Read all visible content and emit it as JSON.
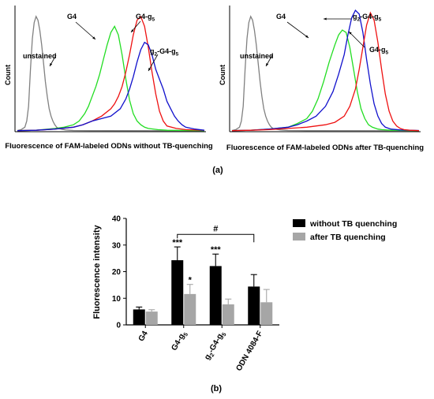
{
  "chart_data": [
    {
      "type": "line",
      "panel": "a-left",
      "ylabel": "Count",
      "xlabel": "Fluorescence of FAM-labeled ODNs without TB-quenching",
      "x_range": [
        0,
        100
      ],
      "series": [
        {
          "name": "unstained",
          "color": "#808080",
          "x": [
            0,
            2,
            4,
            5,
            6,
            7,
            8,
            9,
            10,
            11,
            12,
            13,
            14,
            15,
            16,
            17,
            18,
            19,
            20,
            21,
            22,
            24,
            26,
            28,
            30,
            40,
            100
          ],
          "y": [
            0.3,
            1,
            3,
            8,
            20,
            50,
            75,
            88,
            93,
            90,
            82,
            70,
            55,
            40,
            28,
            18,
            12,
            8,
            5,
            3,
            2,
            1.2,
            0.8,
            0.5,
            0.3,
            0.2,
            0.1
          ]
        },
        {
          "name": "G4",
          "color": "#22dd22",
          "x": [
            0,
            10,
            20,
            25,
            30,
            33,
            36,
            38,
            40,
            42,
            44,
            46,
            48,
            50,
            52,
            54,
            56,
            58,
            60,
            62,
            64,
            66,
            68,
            70,
            75,
            80,
            100
          ],
          "y": [
            0.2,
            0.5,
            2,
            3,
            5,
            8,
            14,
            20,
            28,
            36,
            46,
            58,
            70,
            80,
            85,
            78,
            62,
            42,
            25,
            14,
            8,
            5,
            3,
            2,
            1,
            0.5,
            0.2
          ]
        },
        {
          "name": "G4-g5",
          "color": "#ee1111",
          "x": [
            0,
            10,
            20,
            30,
            35,
            40,
            45,
            50,
            52,
            54,
            56,
            58,
            60,
            62,
            64,
            66,
            68,
            70,
            72,
            74,
            76,
            78,
            80,
            85,
            90,
            100
          ],
          "y": [
            0.2,
            0.5,
            1.5,
            3,
            5,
            8,
            12,
            18,
            22,
            28,
            36,
            48,
            62,
            78,
            90,
            93,
            85,
            68,
            48,
            30,
            16,
            8,
            4,
            2,
            1,
            0.5
          ]
        },
        {
          "name": "g2-G4-g5",
          "color": "#1111cc",
          "x": [
            0,
            10,
            20,
            30,
            35,
            40,
            45,
            50,
            55,
            58,
            60,
            62,
            64,
            66,
            68,
            70,
            72,
            74,
            76,
            78,
            80,
            82,
            84,
            86,
            88,
            90,
            95,
            100
          ],
          "y": [
            0.2,
            0.5,
            1.5,
            3,
            5,
            8,
            10,
            12,
            18,
            26,
            34,
            44,
            56,
            66,
            72,
            70,
            62,
            50,
            42,
            34,
            24,
            18,
            12,
            8,
            5,
            3,
            1.5,
            0.5
          ]
        }
      ],
      "annotations": [
        {
          "text": "G4",
          "series": "G4"
        },
        {
          "text": "unstained",
          "series": "unstained"
        },
        {
          "text": "G4-g",
          "sub": "5",
          "series": "G4-g5"
        },
        {
          "text": "g",
          "sub": "2",
          "rest": "-G4-g",
          "sub2": "5",
          "series": "g2-G4-g5"
        }
      ]
    },
    {
      "type": "line",
      "panel": "a-right",
      "ylabel": "Count",
      "xlabel": "Fluorescence of FAM-labeled ODNs after TB-quenching",
      "x_range": [
        0,
        100
      ],
      "series": [
        {
          "name": "unstained",
          "color": "#808080",
          "x": [
            0,
            2,
            4,
            5,
            6,
            7,
            8,
            9,
            10,
            11,
            12,
            13,
            14,
            15,
            16,
            17,
            18,
            19,
            20,
            21,
            22,
            24,
            26,
            28,
            30,
            40,
            100
          ],
          "y": [
            0.3,
            1,
            3,
            8,
            20,
            50,
            75,
            88,
            93,
            90,
            82,
            70,
            55,
            40,
            28,
            18,
            12,
            8,
            5,
            3,
            2,
            1.2,
            0.8,
            0.5,
            0.3,
            0.2,
            0.1
          ]
        },
        {
          "name": "G4",
          "color": "#22dd22",
          "x": [
            0,
            10,
            20,
            30,
            35,
            40,
            43,
            46,
            49,
            52,
            55,
            57,
            59,
            61,
            63,
            65,
            67,
            69,
            71,
            73,
            75,
            78,
            80,
            85,
            100
          ],
          "y": [
            0.2,
            0.5,
            1.5,
            3,
            6,
            10,
            16,
            26,
            40,
            56,
            70,
            78,
            82,
            80,
            68,
            50,
            32,
            18,
            10,
            5,
            3,
            1.5,
            1,
            0.5,
            0.2
          ]
        },
        {
          "name": "g2-G4-g5",
          "color": "#1111cc",
          "x": [
            0,
            10,
            20,
            30,
            35,
            40,
            45,
            50,
            54,
            57,
            60,
            62,
            64,
            66,
            68,
            70,
            72,
            74,
            76,
            78,
            80,
            82,
            85,
            90,
            100
          ],
          "y": [
            0.2,
            0.5,
            1.5,
            3,
            5,
            8,
            12,
            20,
            32,
            46,
            62,
            78,
            92,
            98,
            95,
            80,
            58,
            38,
            22,
            12,
            6,
            3,
            1.5,
            0.8,
            0.3
          ]
        },
        {
          "name": "G4-g5",
          "color": "#ee1111",
          "x": [
            0,
            10,
            20,
            30,
            40,
            50,
            55,
            60,
            63,
            66,
            68,
            70,
            72,
            74,
            76,
            78,
            80,
            82,
            84,
            86,
            88,
            90,
            92,
            95,
            100
          ],
          "y": [
            0.2,
            0.5,
            1,
            2,
            3,
            5,
            7,
            12,
            20,
            34,
            50,
            68,
            86,
            96,
            90,
            72,
            50,
            30,
            16,
            8,
            4,
            2,
            1,
            0.5,
            0.2
          ]
        }
      ],
      "annotations": [
        {
          "text": "G4",
          "series": "G4"
        },
        {
          "text": "unstained",
          "series": "unstained"
        },
        {
          "text": "g",
          "sub": "2",
          "rest": "-G4-g",
          "sub2": "5",
          "series": "g2-G4-g5"
        },
        {
          "text": "G4-g",
          "sub": "5",
          "series": "G4-g5"
        }
      ]
    },
    {
      "type": "bar",
      "panel": "b",
      "ylabel": "Fluorescence intensity",
      "ylim": [
        0,
        40
      ],
      "yticks": [
        0,
        10,
        20,
        30,
        40
      ],
      "legend_position": "right",
      "categories": [
        {
          "label": "G4"
        },
        {
          "label": "G4-g",
          "sub": "5"
        },
        {
          "label": "g",
          "sub": "2",
          "rest": "-G4-g",
          "sub2": "5"
        },
        {
          "label": "ODN 4084-F"
        }
      ],
      "series": [
        {
          "name": "without TB quenching",
          "color": "#000000",
          "values": [
            5.8,
            24.3,
            22.1,
            14.4
          ],
          "errors": [
            0.9,
            5.0,
            4.5,
            4.5
          ]
        },
        {
          "name": "after TB quenching",
          "color": "#a6a6a6",
          "values": [
            5.0,
            11.6,
            7.7,
            8.5
          ],
          "errors": [
            0.7,
            3.6,
            2.0,
            4.8
          ]
        }
      ],
      "significance": [
        {
          "category": 1,
          "series": 0,
          "text": "***"
        },
        {
          "category": 1,
          "series": 1,
          "text": "*"
        },
        {
          "category": 2,
          "series": 0,
          "text": "***"
        }
      ],
      "bracket": {
        "from_category": 1,
        "to_category": 3,
        "y": 34,
        "text": "#"
      }
    }
  ],
  "panel_labels": {
    "a": "(a)",
    "b": "(b)"
  }
}
